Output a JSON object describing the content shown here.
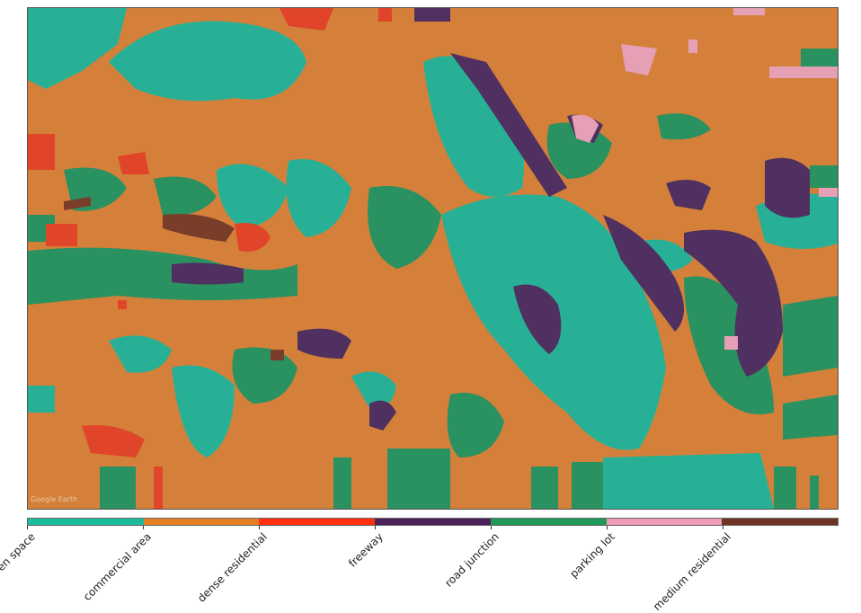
{
  "map": {
    "watermark": "Google Earth"
  },
  "legend": {
    "classes": [
      {
        "label": "open space",
        "color": "#1abc9c"
      },
      {
        "label": "commercial area",
        "color": "#e67e22"
      },
      {
        "label": "dense residential",
        "color": "#ff3010"
      },
      {
        "label": "freeway",
        "color": "#4a2158"
      },
      {
        "label": "road junction",
        "color": "#1e9956"
      },
      {
        "label": "parking lot",
        "color": "#f19cbb"
      },
      {
        "label": "medium residential",
        "color": "#6e3525"
      }
    ]
  }
}
